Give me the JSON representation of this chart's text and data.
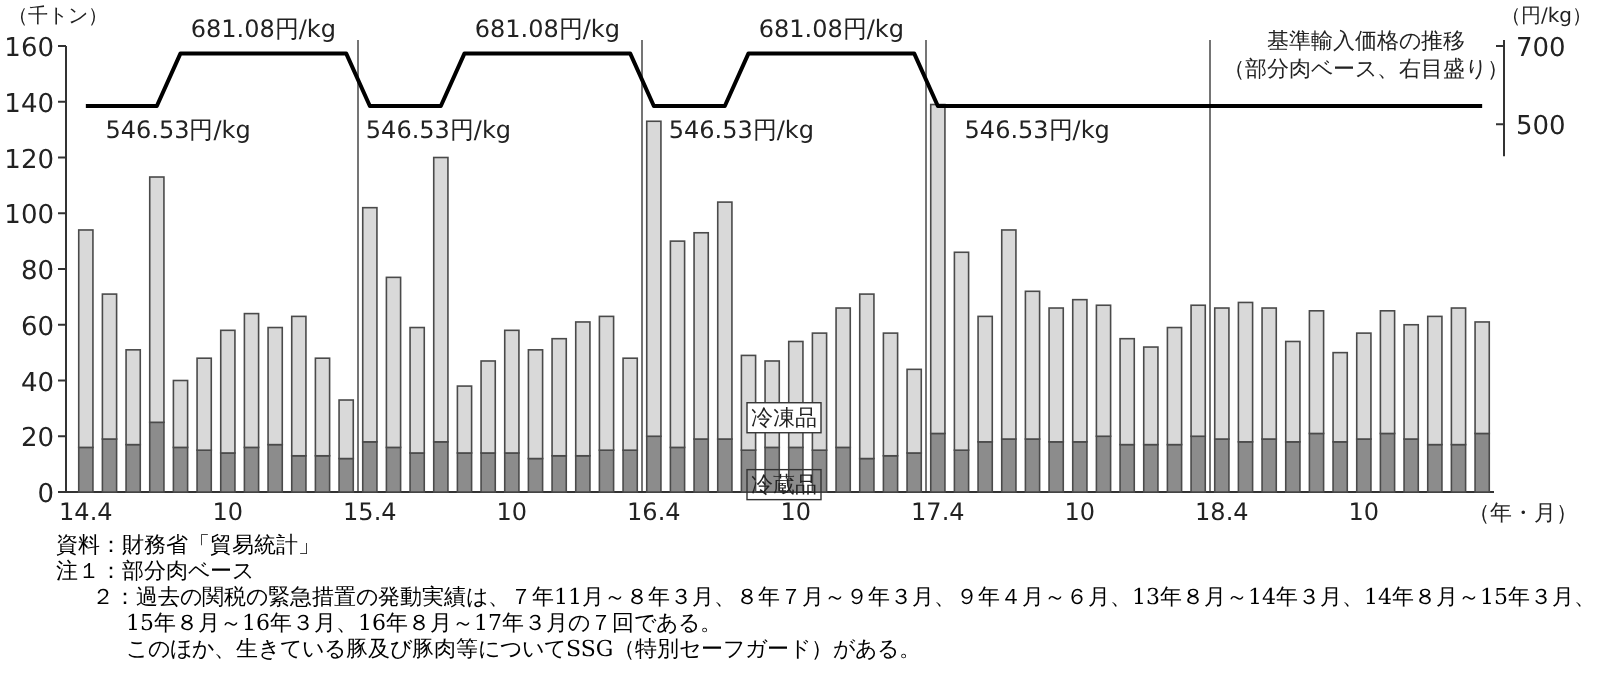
{
  "chart_data": {
    "type": "bar",
    "stacked": true,
    "ylabel": "（千トン）",
    "y2label": "（円/kg）",
    "xlabel": "（年・月）",
    "categories": [
      "14.4",
      null,
      null,
      null,
      null,
      null,
      "10",
      null,
      null,
      null,
      null,
      null,
      "15.4",
      null,
      null,
      null,
      null,
      null,
      "10",
      null,
      null,
      null,
      null,
      null,
      "16.4",
      null,
      null,
      null,
      null,
      null,
      "10",
      null,
      null,
      null,
      null,
      null,
      "17.4",
      null,
      null,
      null,
      null,
      null,
      "10",
      null,
      null,
      null,
      null,
      null,
      "18.4",
      null,
      null,
      null,
      null,
      null,
      "10",
      null,
      null,
      null,
      null,
      null
    ],
    "series": [
      {
        "name": "冷蔵品",
        "color": "#8c8c8c",
        "values": [
          16,
          19,
          17,
          25,
          16,
          15,
          14,
          16,
          17,
          13,
          13,
          12,
          18,
          16,
          14,
          18,
          14,
          14,
          14,
          12,
          13,
          13,
          15,
          15,
          20,
          16,
          19,
          19,
          15,
          16,
          16,
          15,
          16,
          12,
          13,
          14,
          21,
          15,
          18,
          19,
          19,
          18,
          18,
          20,
          17,
          17,
          17,
          20,
          19,
          18,
          19,
          18,
          21,
          18,
          19,
          21,
          19,
          17,
          17,
          21
        ]
      },
      {
        "name": "冷凍品",
        "color": "#d9d9d9",
        "values": [
          78,
          52,
          34,
          88,
          24,
          33,
          44,
          48,
          42,
          50,
          35,
          21,
          84,
          61,
          45,
          102,
          24,
          33,
          44,
          39,
          42,
          48,
          48,
          33,
          113,
          74,
          74,
          85,
          34,
          31,
          38,
          42,
          50,
          59,
          44,
          30,
          118,
          71,
          45,
          75,
          53,
          48,
          51,
          47,
          38,
          35,
          42,
          47,
          47,
          50,
          47,
          36,
          44,
          32,
          38,
          44,
          41,
          46,
          49,
          40
        ]
      },
      {
        "name": "基準輸入価格の推移",
        "type": "line",
        "axis": "y2",
        "color": "#000000",
        "values": [
          546.53,
          546.53,
          546.53,
          546.53,
          681.08,
          681.08,
          681.08,
          681.08,
          681.08,
          681.08,
          681.08,
          681.08,
          546.53,
          546.53,
          546.53,
          546.53,
          681.08,
          681.08,
          681.08,
          681.08,
          681.08,
          681.08,
          681.08,
          681.08,
          546.53,
          546.53,
          546.53,
          546.53,
          681.08,
          681.08,
          681.08,
          681.08,
          681.08,
          681.08,
          681.08,
          681.08,
          546.53,
          546.53,
          546.53,
          546.53,
          546.53,
          546.53,
          546.53,
          546.53,
          546.53,
          546.53,
          546.53,
          546.53,
          546.53,
          546.53,
          546.53,
          546.53,
          546.53,
          546.53,
          546.53,
          546.53,
          546.53,
          546.53,
          546.53,
          546.53
        ]
      }
    ],
    "ylim": [
      0,
      160
    ],
    "yticks": [
      0,
      20,
      40,
      60,
      80,
      100,
      120,
      140,
      160
    ],
    "y2lim": [
      -440,
      700
    ],
    "y2ticks": [
      500,
      700
    ],
    "annotations": [
      "681.08円/kg",
      "681.08円/kg",
      "681.08円/kg",
      "546.53円/kg",
      "546.53円/kg",
      "546.53円/kg",
      "546.53円/kg",
      "（部分肉ベース、右目盛り）",
      "資料：財務省「貿易統計」",
      "注１：部分肉ベース",
      "２：過去の関税の緊急措置の発動実績は、７年11月～８年３月、８年７月～９年３月、９年４月～６月、13年８月～14年３月、14年８月～15年３月、15年８月～16年３月、16年８月～17年３月の７回である。",
      "このほか、生きている豚及び豚肉等についてSSG（特別セーフガード）がある。"
    ]
  }
}
